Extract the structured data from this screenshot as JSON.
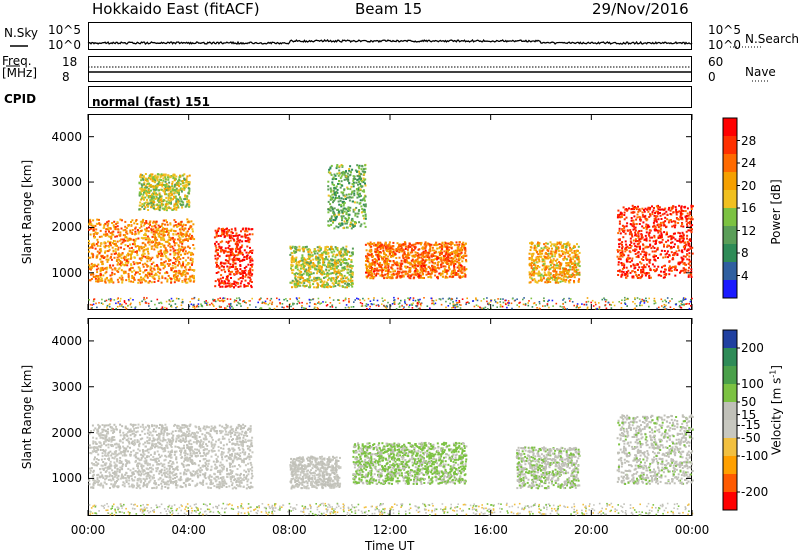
{
  "header": {
    "radar": "Hokkaido East (fitACF)",
    "beam": "Beam 15",
    "date": "29/Nov/2016"
  },
  "side_labels": {
    "nsky": "N.Sky",
    "nsearch": "N.Search",
    "freq": "Freq.",
    "freq_unit": "[MHz]",
    "nave": "Nave",
    "cpid": "CPID",
    "cpid_value": "normal (fast) 151"
  },
  "small_ticks": {
    "nsky_top": "10^5",
    "nsky_bottom": "10^0",
    "nsearch_top": "10^5",
    "nsearch_bottom": "10^0",
    "freq_top": "18",
    "freq_bottom": "8",
    "nave_top": "60",
    "nave_bottom": "0"
  },
  "colors": {
    "power_scale": [
      "#1a1aff",
      "#2f5fa0",
      "#2e8b57",
      "#5a9e58",
      "#7cc242",
      "#f0c020",
      "#f5a000",
      "#ff6a00",
      "#ff3000",
      "#ff0000"
    ],
    "velocity_scale": [
      "#ff0000",
      "#ff5a00",
      "#ffa000",
      "#f2c040",
      "#c8c8c0",
      "#c0c0b8",
      "#7cc242",
      "#4aa04a",
      "#2e8b57",
      "#2040a0"
    ]
  },
  "chart_data": [
    {
      "type": "heatmap",
      "name": "power",
      "xlabel": "",
      "ylabel": "Slant Range [km]",
      "x_range": [
        "00:00",
        "24:00"
      ],
      "ylim": [
        180,
        4500
      ],
      "yticks": [
        1000,
        2000,
        3000,
        4000
      ],
      "colorbar": {
        "label": "Power [dB]",
        "range": [
          0,
          32
        ],
        "ticks": [
          4,
          8,
          12,
          16,
          20,
          24,
          28
        ]
      },
      "echo_regions": [
        {
          "t_start": 0.0,
          "t_end": 4.2,
          "r_min": 800,
          "r_max": 2200,
          "level": 22
        },
        {
          "t_start": 5.0,
          "t_end": 6.5,
          "r_min": 700,
          "r_max": 2000,
          "level": 28
        },
        {
          "t_start": 2.0,
          "t_end": 4.0,
          "r_min": 2400,
          "r_max": 3200,
          "level": 16
        },
        {
          "t_start": 8.0,
          "t_end": 10.5,
          "r_min": 700,
          "r_max": 1600,
          "level": 16
        },
        {
          "t_start": 11.0,
          "t_end": 15.0,
          "r_min": 900,
          "r_max": 1700,
          "level": 24
        },
        {
          "t_start": 17.5,
          "t_end": 19.5,
          "r_min": 800,
          "r_max": 1700,
          "level": 20
        },
        {
          "t_start": 21.0,
          "t_end": 24.0,
          "r_min": 900,
          "r_max": 2500,
          "level": 28
        },
        {
          "t_start": 9.5,
          "t_end": 11.0,
          "r_min": 2000,
          "r_max": 3400,
          "level": 12
        }
      ]
    },
    {
      "type": "heatmap",
      "name": "velocity",
      "xlabel": "Time UT",
      "ylabel": "Slant Range [km]",
      "x_range": [
        "00:00",
        "24:00"
      ],
      "xticks": [
        "00:00",
        "04:00",
        "08:00",
        "12:00",
        "16:00",
        "20:00",
        "00:00"
      ],
      "ylim": [
        180,
        4500
      ],
      "yticks": [
        1000,
        2000,
        3000,
        4000
      ],
      "colorbar": {
        "label": "Velocity [m s^-1]",
        "range": [
          -250,
          250
        ],
        "ticks": [
          200,
          100,
          50,
          15,
          -15,
          -50,
          -100,
          -200
        ]
      },
      "echo_regions": [
        {
          "t_start": 0.0,
          "t_end": 6.5,
          "r_min": 800,
          "r_max": 2200,
          "level": 0
        },
        {
          "t_start": 8.0,
          "t_end": 10.0,
          "r_min": 800,
          "r_max": 1500,
          "level": 0
        },
        {
          "t_start": 10.5,
          "t_end": 15.0,
          "r_min": 900,
          "r_max": 1800,
          "level": 60
        },
        {
          "t_start": 17.0,
          "t_end": 19.5,
          "r_min": 800,
          "r_max": 1700,
          "level": 40
        },
        {
          "t_start": 21.0,
          "t_end": 24.0,
          "r_min": 900,
          "r_max": 2400,
          "level": 30
        }
      ]
    }
  ]
}
